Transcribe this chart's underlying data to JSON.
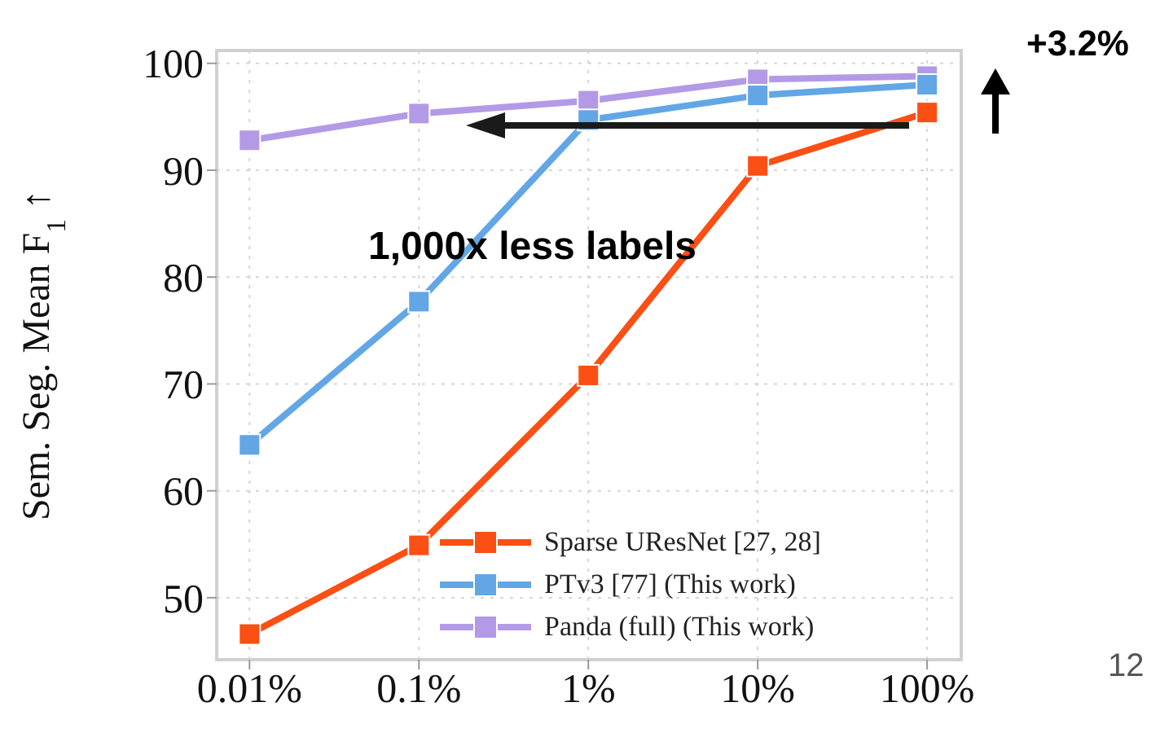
{
  "chart_data": {
    "type": "line",
    "ylabel": "Sem. Seg. Mean F$_{1}$ ↑",
    "x": [
      0.01,
      0.1,
      1,
      10,
      100
    ],
    "log": "x",
    "xlim": [
      0.0064,
      159
    ],
    "xticks": [
      {
        "value": 0.01,
        "label": "0.01%"
      },
      {
        "value": 0.1,
        "label": "0.1%"
      },
      {
        "value": 1,
        "label": "1%"
      },
      {
        "value": 10,
        "label": "10%"
      },
      {
        "value": 100,
        "label": "100%"
      }
    ],
    "ylim": [
      44.2,
      101.2
    ],
    "yticks": [
      50,
      60,
      70,
      80,
      90,
      100
    ],
    "grid": true,
    "legend": "bottom right",
    "marker": "square",
    "line_style": "solid",
    "annotations": [
      "1,000x less labels",
      "+3.2%",
      "12"
    ],
    "series": [
      {
        "name": "Sparse UResNet [27, 28]",
        "color": "#fb4f14",
        "values": [
          46.6,
          54.9,
          70.8,
          90.4,
          95.4
        ]
      },
      {
        "name": "PTv3 [77] (This work)",
        "color": "#62a6e6",
        "values": [
          64.3,
          77.7,
          94.7,
          97.0,
          98.0
        ]
      },
      {
        "name": "Panda (full) (This work)",
        "color": "#b39ae6",
        "values": [
          92.8,
          95.3,
          96.5,
          98.5,
          98.8
        ]
      }
    ]
  }
}
